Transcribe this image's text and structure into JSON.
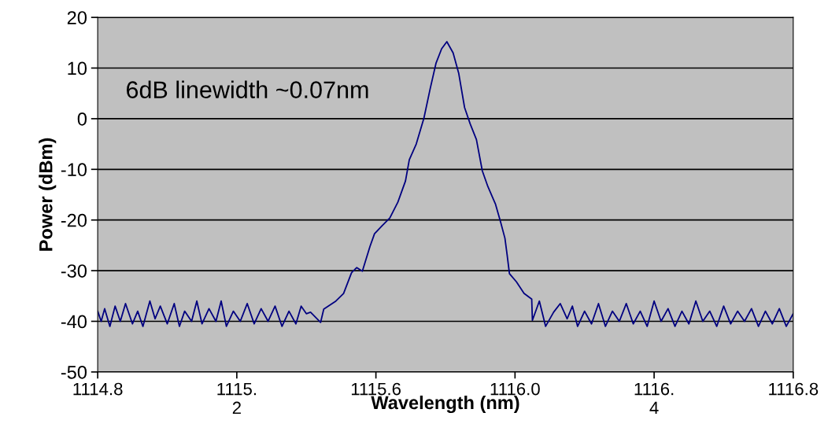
{
  "chart_data": {
    "type": "line",
    "xlabel": "Wavelength (nm)",
    "ylabel": "Power (dBm)",
    "annotations": [
      "6dB linewidth ~0.07nm"
    ],
    "xlim": [
      1114.8,
      1116.8
    ],
    "ylim": [
      -50,
      20
    ],
    "xticks": [
      {
        "value": 1114.8,
        "label": "1114.8"
      },
      {
        "value": 1115.2,
        "label": "1115.\n2"
      },
      {
        "value": 1115.6,
        "label": "1115.6"
      },
      {
        "value": 1116.0,
        "label": "1116.0"
      },
      {
        "value": 1116.4,
        "label": "1116.\n4"
      },
      {
        "value": 1116.8,
        "label": "1116.8"
      }
    ],
    "yticks": [
      -50,
      -40,
      -30,
      -20,
      -10,
      0,
      10,
      20
    ],
    "grid": "y",
    "series": [
      {
        "color": "#000080",
        "x": [
          1114.8,
          1114.81,
          1114.82,
          1114.835,
          1114.85,
          1114.865,
          1114.88,
          1114.9,
          1114.915,
          1114.93,
          1114.95,
          1114.965,
          1114.98,
          1115.0,
          1115.02,
          1115.035,
          1115.05,
          1115.07,
          1115.085,
          1115.1,
          1115.12,
          1115.14,
          1115.155,
          1115.17,
          1115.19,
          1115.21,
          1115.23,
          1115.25,
          1115.27,
          1115.29,
          1115.31,
          1115.33,
          1115.35,
          1115.37,
          1115.385,
          1115.4,
          1115.412,
          1115.441,
          1115.45,
          1115.485,
          1115.507,
          1115.53,
          1115.545,
          1115.561,
          1115.583,
          1115.596,
          1115.618,
          1115.64,
          1115.663,
          1115.685,
          1115.696,
          1115.716,
          1115.738,
          1115.756,
          1115.773,
          1115.789,
          1115.804,
          1115.822,
          1115.838,
          1115.855,
          1115.871,
          1115.889,
          1115.906,
          1115.922,
          1115.944,
          1115.959,
          1115.971,
          1115.977,
          1115.984,
          1116.004,
          1116.026,
          1116.048,
          1116.05,
          1116.07,
          1116.088,
          1116.111,
          1116.13,
          1116.15,
          1116.165,
          1116.18,
          1116.2,
          1116.22,
          1116.24,
          1116.26,
          1116.28,
          1116.3,
          1116.32,
          1116.34,
          1116.36,
          1116.38,
          1116.4,
          1116.42,
          1116.44,
          1116.46,
          1116.48,
          1116.5,
          1116.52,
          1116.54,
          1116.56,
          1116.58,
          1116.6,
          1116.62,
          1116.64,
          1116.66,
          1116.68,
          1116.7,
          1116.72,
          1116.74,
          1116.76,
          1116.78,
          1116.8
        ],
        "values": [
          -38,
          -40,
          -37.5,
          -41,
          -37,
          -40,
          -36.5,
          -40.5,
          -38,
          -41,
          -36,
          -39.5,
          -37,
          -40.5,
          -36.5,
          -41,
          -38,
          -40,
          -36,
          -40.5,
          -37.5,
          -40,
          -36,
          -41,
          -38,
          -40,
          -36.5,
          -40.5,
          -37.5,
          -40,
          -37,
          -41,
          -38,
          -40.5,
          -37,
          -38.5,
          -38.2,
          -40.2,
          -37.6,
          -36,
          -34.5,
          -30.4,
          -29.4,
          -30.1,
          -25.2,
          -22.7,
          -21.1,
          -19.6,
          -16.5,
          -12.3,
          -8.1,
          -5,
          0.1,
          5.9,
          11,
          13.8,
          15.2,
          13,
          9,
          2.2,
          -1,
          -4.1,
          -10.3,
          -13.4,
          -16.9,
          -20.5,
          -23.6,
          -26.7,
          -30.6,
          -32.2,
          -34.5,
          -35.6,
          -39.8,
          -36,
          -41,
          -38.2,
          -36.5,
          -39.5,
          -37,
          -41,
          -38,
          -40.5,
          -36.5,
          -41,
          -38,
          -40,
          -36.5,
          -40.5,
          -38,
          -41,
          -36,
          -40,
          -37.5,
          -41,
          -38,
          -40.5,
          -36,
          -40,
          -38,
          -41,
          -37,
          -40.5,
          -38,
          -40,
          -37.5,
          -41,
          -38,
          -40.5,
          -37.5,
          -41,
          -38.5
        ]
      }
    ]
  }
}
